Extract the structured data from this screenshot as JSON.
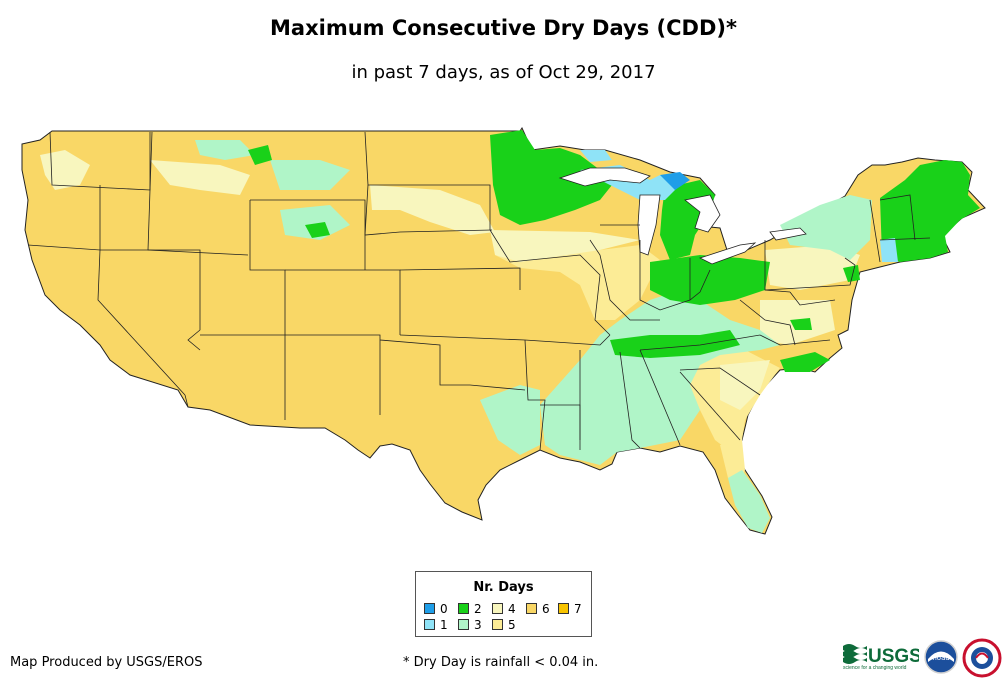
{
  "title": "Maximum Consecutive Dry Days (CDD)*",
  "subtitle": "in past 7 days, as of Oct 29, 2017",
  "legend": {
    "title": "Nr. Days",
    "items": [
      {
        "label": "0",
        "color": "#1f9ee8"
      },
      {
        "label": "1",
        "color": "#8fe3f7"
      },
      {
        "label": "2",
        "color": "#19d119"
      },
      {
        "label": "3",
        "color": "#b0f5c8"
      },
      {
        "label": "4",
        "color": "#f8f6be"
      },
      {
        "label": "5",
        "color": "#fcec96"
      },
      {
        "label": "6",
        "color": "#f9d766"
      },
      {
        "label": "7",
        "color": "#f8c400"
      }
    ]
  },
  "credit": "Map Produced by USGS/EROS",
  "footnote": "* Dry Day is rainfall < 0.04 in.",
  "logos": {
    "usgs": "USGS",
    "usgs_tagline": "science for a changing world",
    "noaa": "noaa"
  }
}
